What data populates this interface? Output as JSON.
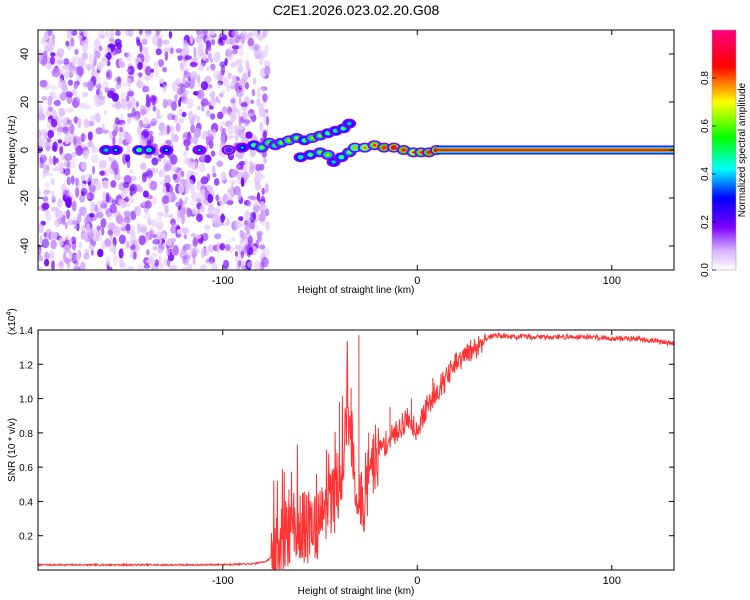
{
  "title": "C2E1.2026.023.02.20.G08",
  "chart_data": [
    {
      "type": "heatmap",
      "name": "spectrogram",
      "xlabel": "Height of straight line (km)",
      "ylabel": "Frequency (Hz)",
      "xlim": [
        -195,
        132
      ],
      "ylim": [
        -50,
        50
      ],
      "xticks": [
        -100,
        0,
        100
      ],
      "xtick_labels": [
        "-100",
        "0",
        "100"
      ],
      "yticks": [
        -40,
        -20,
        0,
        20,
        40
      ],
      "ytick_labels": [
        "-40",
        "-20",
        "0",
        "20",
        "40"
      ],
      "noise_region_km": [
        -195,
        -77
      ],
      "tone_frequency_hz": 0,
      "tone_start_km": 10,
      "blobs": [
        {
          "x": -160,
          "y": 0,
          "a": 0.35
        },
        {
          "x": -155,
          "y": 0,
          "a": 0.3
        },
        {
          "x": -143,
          "y": 0,
          "a": 0.45
        },
        {
          "x": -138,
          "y": 0,
          "a": 0.4
        },
        {
          "x": -129,
          "y": 0,
          "a": 0.3
        },
        {
          "x": -112,
          "y": 0,
          "a": 0.25
        },
        {
          "x": -97,
          "y": 0,
          "a": 0.2
        },
        {
          "x": -90,
          "y": 1,
          "a": 0.3
        },
        {
          "x": -84,
          "y": 2,
          "a": 0.45
        },
        {
          "x": -80,
          "y": 1,
          "a": 0.5
        },
        {
          "x": -76,
          "y": 3,
          "a": 0.55
        },
        {
          "x": -73,
          "y": 2,
          "a": 0.5
        },
        {
          "x": -70,
          "y": 3,
          "a": 0.5
        },
        {
          "x": -66,
          "y": 4,
          "a": 0.55
        },
        {
          "x": -62,
          "y": 5,
          "a": 0.5
        },
        {
          "x": -58,
          "y": 4,
          "a": 0.45
        },
        {
          "x": -54,
          "y": 5,
          "a": 0.55
        },
        {
          "x": -50,
          "y": 6,
          "a": 0.5
        },
        {
          "x": -46,
          "y": 7,
          "a": 0.45
        },
        {
          "x": -42,
          "y": 8,
          "a": 0.4
        },
        {
          "x": -38,
          "y": 9,
          "a": 0.45
        },
        {
          "x": -35,
          "y": 11,
          "a": 0.35
        },
        {
          "x": -60,
          "y": -3,
          "a": 0.4
        },
        {
          "x": -55,
          "y": -2,
          "a": 0.45
        },
        {
          "x": -50,
          "y": -1,
          "a": 0.5
        },
        {
          "x": -46,
          "y": -2,
          "a": 0.55
        },
        {
          "x": -43,
          "y": -5,
          "a": 0.35
        },
        {
          "x": -39,
          "y": -3,
          "a": 0.45
        },
        {
          "x": -35,
          "y": -1,
          "a": 0.5
        },
        {
          "x": -32,
          "y": 1,
          "a": 0.6
        },
        {
          "x": -27,
          "y": 1,
          "a": 0.65
        },
        {
          "x": -22,
          "y": 2,
          "a": 0.75
        },
        {
          "x": -17,
          "y": 1,
          "a": 0.8
        },
        {
          "x": -12,
          "y": 1,
          "a": 0.85
        },
        {
          "x": -7,
          "y": 0,
          "a": 0.8
        },
        {
          "x": -2,
          "y": -1,
          "a": 0.7
        },
        {
          "x": 2,
          "y": -1,
          "a": 0.75
        },
        {
          "x": 6,
          "y": -1,
          "a": 0.8
        },
        {
          "x": 10,
          "y": 0,
          "a": 0.85
        }
      ],
      "colorbar": {
        "label": "Normalized spectral amplitude",
        "range": [
          0,
          1
        ],
        "ticks": [
          0,
          0.2,
          0.4,
          0.6,
          0.8
        ],
        "tick_labels": [
          "0.0",
          "0.2",
          "0.4",
          "0.6",
          "0.8"
        ]
      }
    },
    {
      "type": "line",
      "name": "snr",
      "xlabel": "Height of straight line (km)",
      "ylabel": "SNR (10 * v/v)",
      "y_scale_label": "(x10",
      "y_scale_exponent": "4",
      "xlim": [
        -195,
        132
      ],
      "ylim": [
        0,
        1.4
      ],
      "xticks": [
        -100,
        0,
        100
      ],
      "xtick_labels": [
        "-100",
        "0",
        "100"
      ],
      "yticks": [
        0.2,
        0.4,
        0.6,
        0.8,
        1.0,
        1.2,
        1.4
      ],
      "ytick_labels": [
        "0.2",
        "0.4",
        "0.6",
        "0.8",
        "1.0",
        "1.2",
        "1.4"
      ],
      "color": "#ff3333",
      "series": {
        "x": [
          -195,
          -150,
          -110,
          -85,
          -78,
          -72,
          -67,
          -63,
          -60,
          -57,
          -54,
          -51,
          -48,
          -45,
          -42,
          -39,
          -37,
          -35,
          -33,
          -31,
          -29,
          -27,
          -24,
          -20,
          -15,
          -10,
          -5,
          0,
          5,
          10,
          15,
          20,
          25,
          30,
          35,
          40,
          50,
          60,
          70,
          80,
          90,
          100,
          110,
          120,
          132
        ],
        "y": [
          0.03,
          0.03,
          0.03,
          0.035,
          0.05,
          0.1,
          0.2,
          0.25,
          0.28,
          0.22,
          0.3,
          0.25,
          0.32,
          0.35,
          0.45,
          0.6,
          0.8,
          0.9,
          0.7,
          0.4,
          0.35,
          0.45,
          0.6,
          0.7,
          0.75,
          0.82,
          0.88,
          0.82,
          0.95,
          1.05,
          1.12,
          1.2,
          1.25,
          1.3,
          1.35,
          1.37,
          1.36,
          1.36,
          1.36,
          1.36,
          1.36,
          1.35,
          1.35,
          1.34,
          1.32
        ],
        "spikes": [
          {
            "x": -66,
            "y": 0.47
          },
          {
            "x": -59,
            "y": 0.45
          },
          {
            "x": -52,
            "y": 0.42
          },
          {
            "x": -40,
            "y": 0.98
          },
          {
            "x": -34,
            "y": 1.06
          },
          {
            "x": -30,
            "y": 1.37
          },
          {
            "x": -25,
            "y": 0.8
          },
          {
            "x": -14,
            "y": 0.95
          },
          {
            "x": -3,
            "y": 1.0
          },
          {
            "x": 8,
            "y": 1.12
          },
          {
            "x": 20,
            "y": 1.27
          }
        ]
      }
    }
  ]
}
